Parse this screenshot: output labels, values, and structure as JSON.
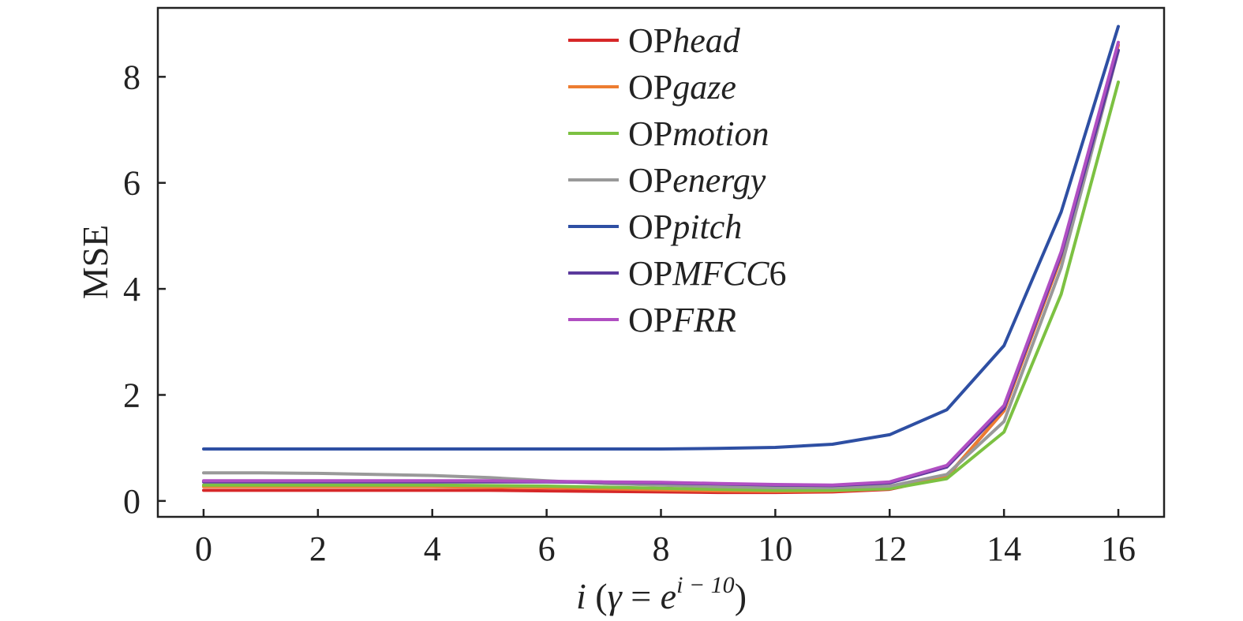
{
  "chart_data": {
    "type": "line",
    "ylabel": "MSE",
    "xlabel": {
      "prefix": "i (γ = e",
      "superscript": "i − 10",
      "suffix": ")"
    },
    "xlim": [
      -0.8,
      16.8
    ],
    "ylim": [
      -0.3,
      9.3
    ],
    "xticks": [
      "0",
      "2",
      "4",
      "6",
      "8",
      "10",
      "12",
      "14",
      "16"
    ],
    "yticks": [
      "0",
      "2",
      "4",
      "6",
      "8"
    ],
    "legend_position": "top-center",
    "x": [
      0,
      1,
      2,
      3,
      4,
      5,
      6,
      7,
      8,
      9,
      10,
      11,
      12,
      13,
      14,
      15,
      16
    ],
    "series": [
      {
        "name": "OPhead",
        "legend_prefix": "OP",
        "legend_suffix": "head",
        "color": "#d62728",
        "values": [
          0.2,
          0.2,
          0.2,
          0.2,
          0.2,
          0.2,
          0.19,
          0.18,
          0.17,
          0.16,
          0.16,
          0.17,
          0.22,
          0.45,
          1.7,
          4.6,
          8.6
        ]
      },
      {
        "name": "OPgaze",
        "legend_prefix": "OP",
        "legend_suffix": "gaze",
        "color": "#ed7d31",
        "values": [
          0.27,
          0.27,
          0.27,
          0.27,
          0.27,
          0.26,
          0.25,
          0.23,
          0.21,
          0.19,
          0.18,
          0.19,
          0.23,
          0.46,
          1.7,
          4.6,
          8.6
        ]
      },
      {
        "name": "OPmotion",
        "legend_prefix": "OP",
        "legend_suffix": "motion",
        "color": "#7cc142",
        "values": [
          0.3,
          0.3,
          0.3,
          0.3,
          0.3,
          0.29,
          0.28,
          0.26,
          0.24,
          0.22,
          0.2,
          0.2,
          0.23,
          0.42,
          1.3,
          3.9,
          7.9
        ]
      },
      {
        "name": "OPenergy",
        "legend_prefix": "OP",
        "legend_suffix": "energy",
        "color": "#999999",
        "values": [
          0.53,
          0.53,
          0.52,
          0.5,
          0.48,
          0.44,
          0.38,
          0.33,
          0.3,
          0.27,
          0.25,
          0.25,
          0.28,
          0.5,
          1.5,
          4.4,
          8.5
        ]
      },
      {
        "name": "OPpitch",
        "legend_prefix": "OP",
        "legend_suffix": "pitch",
        "color": "#2e4fa3",
        "values": [
          0.98,
          0.98,
          0.98,
          0.98,
          0.98,
          0.98,
          0.98,
          0.98,
          0.98,
          0.99,
          1.01,
          1.07,
          1.25,
          1.72,
          2.93,
          5.45,
          8.95
        ]
      },
      {
        "name": "OPMFCC6",
        "legend_prefix": "OP",
        "legend_suffix": "MFCC",
        "legend_tail": "6",
        "color": "#5b3a9c",
        "values": [
          0.36,
          0.36,
          0.36,
          0.36,
          0.36,
          0.36,
          0.36,
          0.35,
          0.34,
          0.32,
          0.3,
          0.29,
          0.34,
          0.64,
          1.75,
          4.65,
          8.5
        ]
      },
      {
        "name": "OPFRR",
        "legend_prefix": "OP",
        "legend_suffix": "FRR",
        "color": "#b04fc2",
        "values": [
          0.38,
          0.38,
          0.38,
          0.38,
          0.38,
          0.38,
          0.37,
          0.36,
          0.35,
          0.33,
          0.31,
          0.3,
          0.36,
          0.67,
          1.8,
          4.7,
          8.65
        ]
      }
    ]
  }
}
